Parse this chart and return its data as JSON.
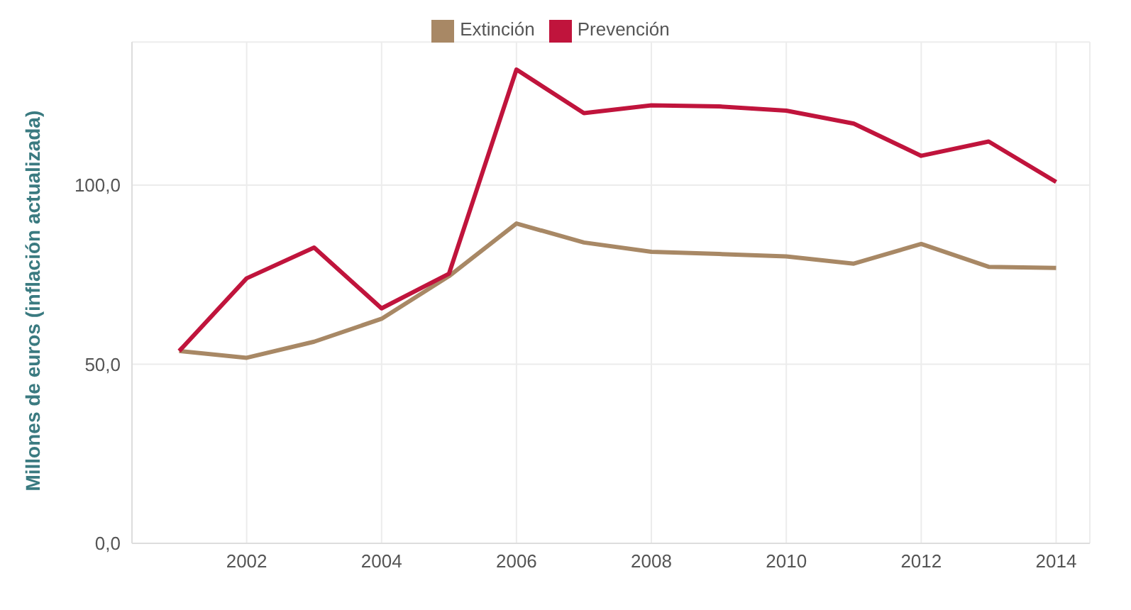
{
  "chart_data": {
    "type": "line",
    "ylabel": "Millones de euros (inflación actualizada)",
    "x": [
      2001,
      2002,
      2003,
      2004,
      2005,
      2006,
      2007,
      2008,
      2009,
      2010,
      2011,
      2012,
      2013,
      2014
    ],
    "series": [
      {
        "name": "Extinción",
        "color": "#a88865",
        "values": [
          53.7,
          51.8,
          56.3,
          62.7,
          74.6,
          89.3,
          84,
          81.4,
          80.8,
          80.1,
          78.1,
          83.6,
          77.2,
          76.9
        ]
      },
      {
        "name": "Prevención",
        "color": "#c0143c",
        "values": [
          53.7,
          74,
          82.6,
          65.6,
          75.3,
          132.3,
          120.1,
          122.3,
          122,
          120.8,
          117.2,
          108.2,
          112.2,
          100.9
        ]
      }
    ],
    "xlim": [
      2000.3,
      2014.5
    ],
    "xticks": [
      2002,
      2004,
      2006,
      2008,
      2010,
      2012,
      2014
    ],
    "ylim": [
      0,
      140
    ],
    "yticks": [
      {
        "value": 0,
        "label": "0,0"
      },
      {
        "value": 50,
        "label": "50,0"
      },
      {
        "value": 100,
        "label": "100,0"
      }
    ],
    "grid": true,
    "legend": "top",
    "marker": "none",
    "line_style": "solid"
  }
}
